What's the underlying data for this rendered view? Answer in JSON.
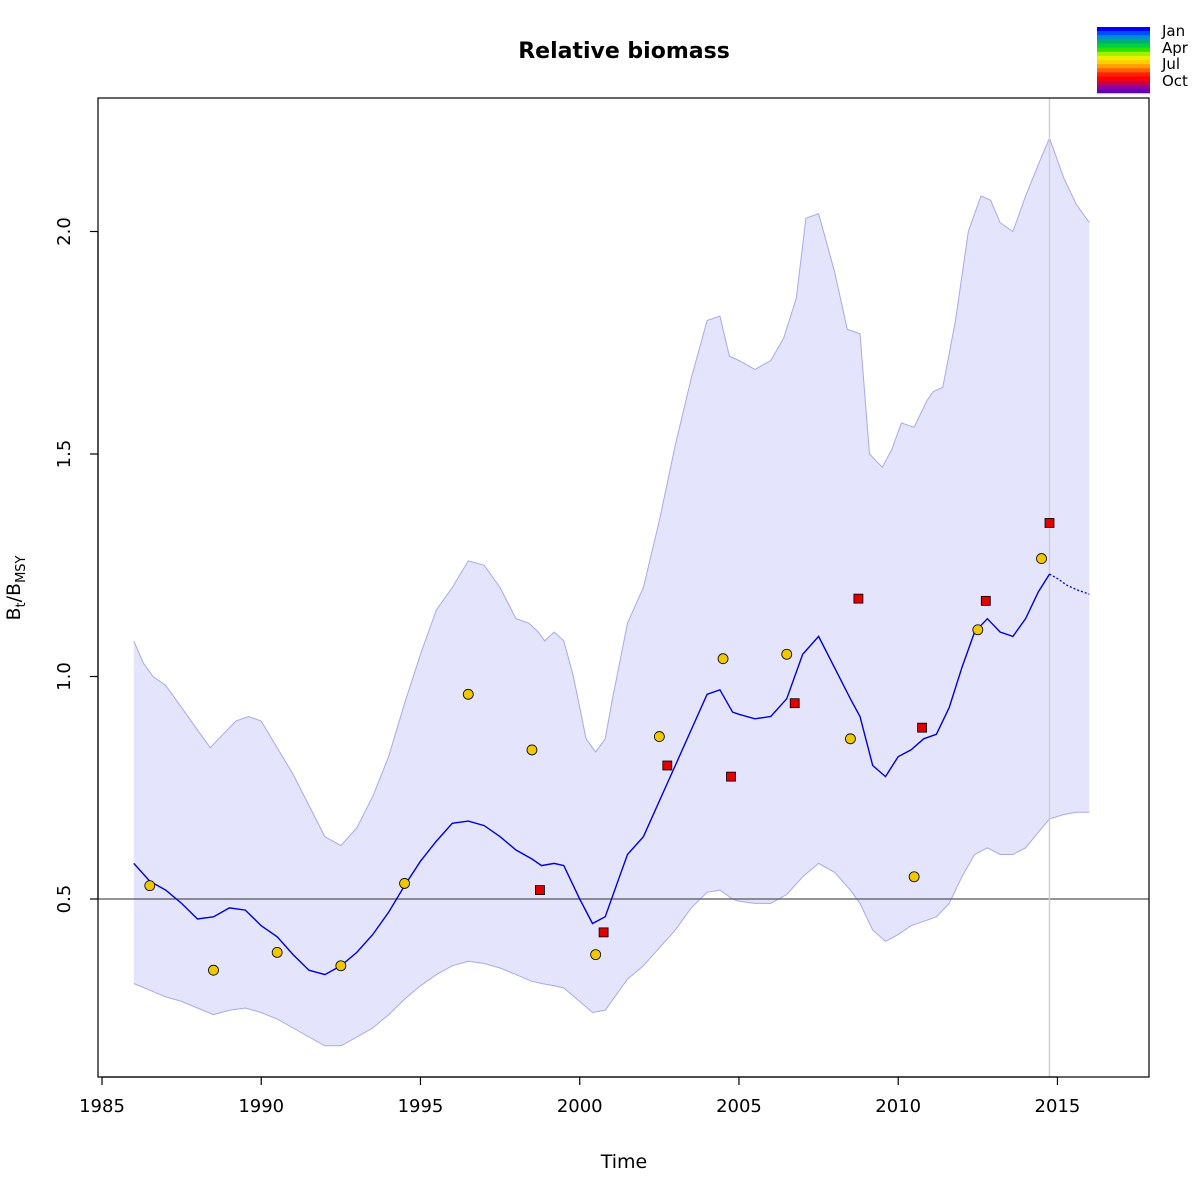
{
  "chart_data": {
    "type": "line",
    "title": "Relative biomass",
    "xlabel": "Time",
    "ylabel": {
      "base": "B",
      "sub1": "t",
      "slash": "/B",
      "sub2": "MSY"
    },
    "xlim": [
      1985,
      2018
    ],
    "ylim": [
      0.1,
      2.3
    ],
    "x_ticks": [
      1985,
      1990,
      1995,
      2000,
      2005,
      2010,
      2015
    ],
    "y_ticks": [
      0.5,
      1.0,
      1.5,
      2.0
    ],
    "x_tick_labels": [
      "1985",
      "1990",
      "1995",
      "2000",
      "2005",
      "2010",
      "2015"
    ],
    "y_tick_labels": [
      "0.5",
      "1.0",
      "1.5",
      "2.0"
    ],
    "grid": false,
    "reference_line_y": 0.5,
    "vertical_line_x": 2014.75,
    "estimate_color": "#0000dd",
    "band_fill": "#e4e4fc",
    "band_stroke": "#a8a8ef",
    "estimate": {
      "x": [
        1986.0,
        1986.5,
        1987.0,
        1987.5,
        1988.0,
        1988.5,
        1989.0,
        1989.5,
        1990.0,
        1990.5,
        1991.0,
        1991.5,
        1992.0,
        1992.5,
        1993.0,
        1993.5,
        1994.0,
        1994.5,
        1995.0,
        1995.5,
        1996.0,
        1996.5,
        1997.0,
        1997.5,
        1998.0,
        1998.5,
        1998.8,
        1999.2,
        1999.5,
        2000.0,
        2000.4,
        2000.8,
        2001.2,
        2001.5,
        2002.0,
        2002.5,
        2003.0,
        2003.5,
        2004.0,
        2004.4,
        2004.8,
        2005.0,
        2005.5,
        2006.0,
        2006.5,
        2007.0,
        2007.5,
        2008.0,
        2008.5,
        2008.8,
        2009.2,
        2009.6,
        2010.0,
        2010.4,
        2010.8,
        2011.2,
        2011.6,
        2012.0,
        2012.4,
        2012.8,
        2013.2,
        2013.6,
        2014.0,
        2014.4,
        2014.75
      ],
      "y": [
        0.58,
        0.54,
        0.52,
        0.49,
        0.455,
        0.46,
        0.48,
        0.475,
        0.44,
        0.415,
        0.375,
        0.34,
        0.33,
        0.35,
        0.38,
        0.42,
        0.47,
        0.53,
        0.585,
        0.63,
        0.67,
        0.675,
        0.665,
        0.64,
        0.61,
        0.59,
        0.575,
        0.58,
        0.575,
        0.5,
        0.445,
        0.46,
        0.54,
        0.6,
        0.64,
        0.72,
        0.8,
        0.88,
        0.96,
        0.97,
        0.92,
        0.915,
        0.905,
        0.91,
        0.95,
        1.05,
        1.09,
        1.02,
        0.95,
        0.91,
        0.8,
        0.775,
        0.82,
        0.835,
        0.86,
        0.87,
        0.93,
        1.02,
        1.1,
        1.13,
        1.1,
        1.09,
        1.13,
        1.19,
        1.23
      ]
    },
    "forecast": {
      "x": [
        2014.75,
        2015.0,
        2015.3,
        2015.6,
        2016.0
      ],
      "y": [
        1.23,
        1.22,
        1.205,
        1.195,
        1.185
      ]
    },
    "ci_upper": {
      "x": [
        1986.0,
        1986.3,
        1986.6,
        1987.0,
        1987.5,
        1988.0,
        1988.4,
        1988.8,
        1989.2,
        1989.6,
        1990.0,
        1990.5,
        1991.0,
        1991.5,
        1992.0,
        1992.5,
        1993.0,
        1993.5,
        1994.0,
        1994.5,
        1995.0,
        1995.5,
        1996.0,
        1996.5,
        1997.0,
        1997.5,
        1998.0,
        1998.4,
        1998.7,
        1998.9,
        1999.2,
        1999.5,
        1999.8,
        2000.2,
        2000.5,
        2000.8,
        2001.0,
        2001.5,
        2002.0,
        2002.5,
        2003.0,
        2003.5,
        2004.0,
        2004.4,
        2004.7,
        2005.0,
        2005.5,
        2006.0,
        2006.4,
        2006.8,
        2007.1,
        2007.5,
        2008.0,
        2008.4,
        2008.8,
        2009.1,
        2009.5,
        2009.8,
        2010.1,
        2010.5,
        2010.9,
        2011.1,
        2011.4,
        2011.8,
        2012.2,
        2012.6,
        2012.9,
        2013.2,
        2013.6,
        2014.0,
        2014.4,
        2014.75,
        2015.2,
        2015.6,
        2016.0
      ],
      "y": [
        1.08,
        1.03,
        1.0,
        0.98,
        0.93,
        0.88,
        0.84,
        0.87,
        0.9,
        0.91,
        0.9,
        0.84,
        0.78,
        0.71,
        0.64,
        0.62,
        0.66,
        0.73,
        0.82,
        0.94,
        1.05,
        1.15,
        1.2,
        1.26,
        1.25,
        1.2,
        1.13,
        1.12,
        1.1,
        1.08,
        1.1,
        1.08,
        1.0,
        0.86,
        0.83,
        0.86,
        0.94,
        1.12,
        1.2,
        1.35,
        1.52,
        1.67,
        1.8,
        1.81,
        1.72,
        1.71,
        1.69,
        1.71,
        1.76,
        1.85,
        2.03,
        2.04,
        1.91,
        1.78,
        1.77,
        1.5,
        1.47,
        1.51,
        1.57,
        1.56,
        1.62,
        1.64,
        1.65,
        1.8,
        2.0,
        2.08,
        2.07,
        2.02,
        2.0,
        2.08,
        2.15,
        2.21,
        2.12,
        2.06,
        2.02
      ]
    },
    "ci_lower": {
      "x": [
        1986.0,
        1986.5,
        1987.0,
        1987.5,
        1988.0,
        1988.5,
        1989.0,
        1989.5,
        1990.0,
        1990.5,
        1991.0,
        1991.5,
        1992.0,
        1992.5,
        1993.0,
        1993.5,
        1994.0,
        1994.5,
        1995.0,
        1995.5,
        1996.0,
        1996.5,
        1997.0,
        1997.5,
        1998.0,
        1998.5,
        1998.8,
        1999.2,
        1999.5,
        2000.0,
        2000.4,
        2000.8,
        2001.2,
        2001.5,
        2002.0,
        2002.5,
        2003.0,
        2003.5,
        2004.0,
        2004.4,
        2004.8,
        2005.0,
        2005.5,
        2006.0,
        2006.5,
        2007.0,
        2007.5,
        2008.0,
        2008.5,
        2008.8,
        2009.2,
        2009.6,
        2010.0,
        2010.4,
        2010.8,
        2011.2,
        2011.6,
        2012.0,
        2012.4,
        2012.8,
        2013.2,
        2013.6,
        2014.0,
        2014.4,
        2014.75,
        2015.2,
        2015.6,
        2016.0
      ],
      "y": [
        0.31,
        0.295,
        0.28,
        0.27,
        0.255,
        0.24,
        0.25,
        0.255,
        0.245,
        0.23,
        0.21,
        0.19,
        0.17,
        0.17,
        0.19,
        0.21,
        0.24,
        0.275,
        0.305,
        0.33,
        0.35,
        0.36,
        0.355,
        0.345,
        0.33,
        0.315,
        0.31,
        0.305,
        0.3,
        0.27,
        0.245,
        0.25,
        0.29,
        0.32,
        0.35,
        0.39,
        0.43,
        0.48,
        0.515,
        0.52,
        0.5,
        0.495,
        0.49,
        0.49,
        0.51,
        0.55,
        0.58,
        0.56,
        0.52,
        0.49,
        0.43,
        0.405,
        0.42,
        0.44,
        0.45,
        0.46,
        0.49,
        0.55,
        0.6,
        0.615,
        0.6,
        0.6,
        0.615,
        0.65,
        0.68,
        0.69,
        0.695,
        0.695
      ]
    },
    "observations": [
      {
        "series": "index-1",
        "marker": "circle",
        "color": "#f0c800",
        "x": [
          1986.5,
          1988.5,
          1990.5,
          1992.5,
          1994.5,
          1996.5,
          1998.5,
          2000.5,
          2002.5,
          2004.5,
          2006.5,
          2008.5,
          2010.5,
          2012.5,
          2014.5
        ],
        "y": [
          0.53,
          0.34,
          0.38,
          0.35,
          0.535,
          0.96,
          0.835,
          0.375,
          0.865,
          1.04,
          1.05,
          0.86,
          0.55,
          1.105,
          1.265
        ]
      },
      {
        "series": "index-2",
        "marker": "square",
        "color": "#e00000",
        "x": [
          1998.75,
          2000.75,
          2002.75,
          2004.75,
          2006.75,
          2008.75,
          2010.75,
          2012.75,
          2014.75
        ],
        "y": [
          0.52,
          0.425,
          0.8,
          0.775,
          0.94,
          1.175,
          0.885,
          1.17,
          1.345
        ]
      }
    ],
    "legend": {
      "placement": "top-right",
      "labels": [
        "Jan",
        "Apr",
        "Jul",
        "Oct"
      ],
      "colors": [
        "#0000ff",
        "#0050ff",
        "#0090d0",
        "#00b070",
        "#00d040",
        "#30e000",
        "#a0f000",
        "#e8f000",
        "#ffd000",
        "#ffa000",
        "#ff6000",
        "#ff2000",
        "#ff0000",
        "#d0003a",
        "#9000a0",
        "#6000b0"
      ]
    }
  }
}
